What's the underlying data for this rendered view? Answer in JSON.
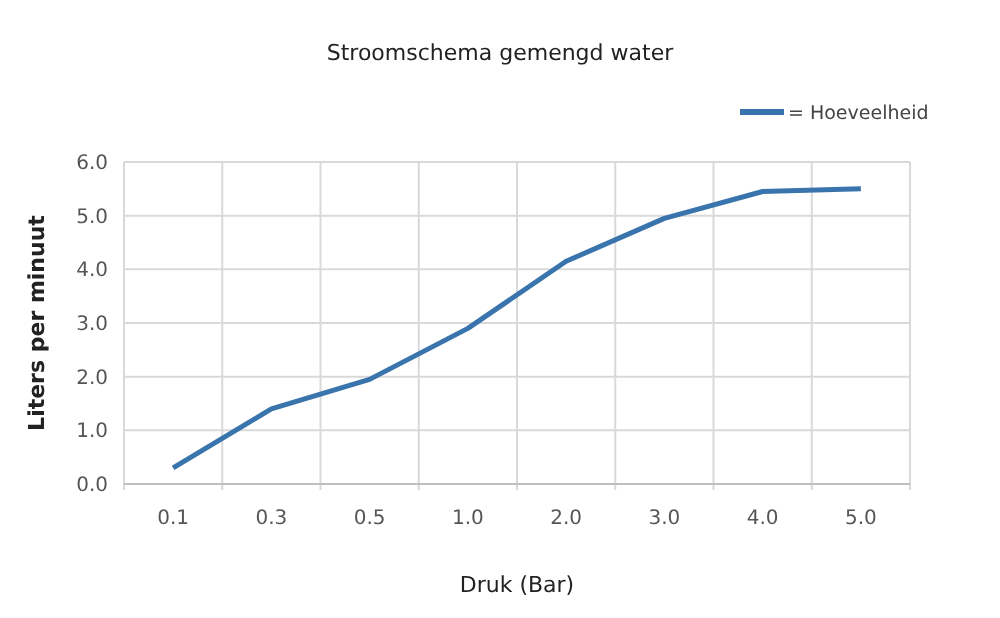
{
  "chart_data": {
    "type": "line",
    "title": "Stroomschema gemengd water",
    "xlabel": "Druk (Bar)",
    "ylabel": "Liters per minuut",
    "categories": [
      "0.1",
      "0.3",
      "0.5",
      "1.0",
      "2.0",
      "3.0",
      "4.0",
      "5.0"
    ],
    "series": [
      {
        "name": "= Hoeveelheid",
        "color": "#3a74ad",
        "values": [
          0.3,
          1.4,
          1.95,
          2.9,
          4.15,
          4.95,
          5.45,
          5.5
        ]
      }
    ],
    "ylim": [
      0,
      6
    ],
    "yticks": [
      {
        "value": 0,
        "label": "0.0"
      },
      {
        "value": 1,
        "label": "1.0"
      },
      {
        "value": 2,
        "label": "2.0"
      },
      {
        "value": 3,
        "label": "3.0"
      },
      {
        "value": 4,
        "label": "4.0"
      },
      {
        "value": 5,
        "label": "5.0"
      },
      {
        "value": 6,
        "label": "6.0"
      }
    ],
    "grid": true,
    "legend": "top right",
    "marker": "none",
    "line_style": "solid"
  }
}
